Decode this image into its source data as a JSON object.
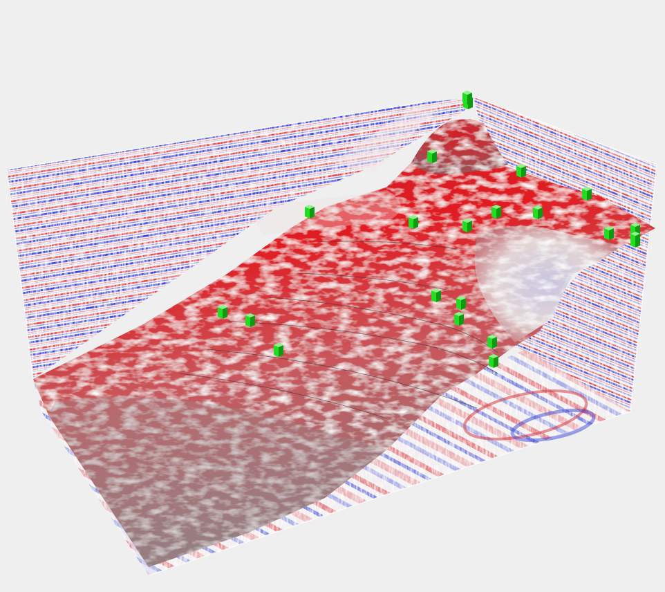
{
  "scene": {
    "background": "#efefef",
    "palette": {
      "positive": "#e8141c",
      "negative": "#1a2be0",
      "neutral": "#f4f1f1",
      "horizon_shade": "#7d6f72",
      "well_marker": "#22dd22",
      "well_marker_dark": "#0f9a12"
    },
    "panels": [
      {
        "name": "back-left-inline",
        "orientation": "vertical"
      },
      {
        "name": "back-right-crossline",
        "orientation": "vertical"
      },
      {
        "name": "base-time-slice",
        "orientation": "horizontal"
      },
      {
        "name": "horizon-surface",
        "orientation": "surface"
      }
    ],
    "wells": [
      {
        "name": "well-01"
      },
      {
        "name": "well-02"
      },
      {
        "name": "well-03"
      },
      {
        "name": "well-04"
      },
      {
        "name": "well-05"
      },
      {
        "name": "well-06"
      },
      {
        "name": "well-07"
      },
      {
        "name": "well-08"
      },
      {
        "name": "well-09"
      },
      {
        "name": "well-10"
      },
      {
        "name": "well-11"
      },
      {
        "name": "well-12"
      },
      {
        "name": "well-13"
      },
      {
        "name": "well-14"
      },
      {
        "name": "well-15"
      },
      {
        "name": "well-16"
      },
      {
        "name": "well-17"
      },
      {
        "name": "well-18"
      },
      {
        "name": "well-19"
      },
      {
        "name": "well-20"
      },
      {
        "name": "well-21"
      },
      {
        "name": "well-22"
      }
    ]
  }
}
